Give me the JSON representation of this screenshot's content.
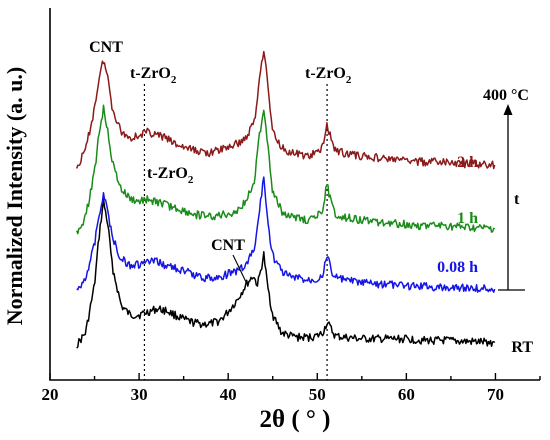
{
  "chart_data": {
    "type": "line",
    "xlabel": "2θ ( ° )",
    "ylabel": "Normalized Intensity (a. u.)",
    "xlim": [
      20,
      75
    ],
    "xticks": [
      20,
      30,
      40,
      50,
      60,
      70
    ],
    "x_tick_labels": [
      "20",
      "30",
      "40",
      "50",
      "60",
      "70"
    ],
    "y_ticks_shown": false,
    "grid": false,
    "reference_lines": [
      30.6,
      51.1
    ],
    "series": [
      {
        "name": "RT",
        "color": "#000000",
        "x": [
          23,
          24,
          25,
          25.5,
          26,
          26.5,
          27,
          28,
          29,
          30,
          31,
          32,
          33,
          34,
          35,
          36,
          37,
          38,
          39,
          40,
          41,
          42,
          42.8,
          43.3,
          43.6,
          44,
          44.4,
          45,
          46,
          47,
          48,
          49,
          50,
          50.6,
          51.1,
          51.6,
          52,
          53,
          55,
          58,
          60,
          62,
          64,
          66,
          68,
          70
        ],
        "y": [
          0.0,
          0.04,
          0.2,
          0.36,
          0.48,
          0.4,
          0.26,
          0.13,
          0.1,
          0.1,
          0.11,
          0.12,
          0.115,
          0.1,
          0.085,
          0.075,
          0.07,
          0.07,
          0.08,
          0.11,
          0.15,
          0.2,
          0.23,
          0.2,
          0.24,
          0.3,
          0.2,
          0.1,
          0.04,
          0.03,
          0.025,
          0.025,
          0.03,
          0.04,
          0.075,
          0.05,
          0.03,
          0.025,
          0.02,
          0.02,
          0.02,
          0.015,
          0.015,
          0.012,
          0.01,
          0.008
        ]
      },
      {
        "name": "0.08 h",
        "color": "#1515e6",
        "x": [
          23,
          24,
          25,
          25.5,
          26,
          26.5,
          27,
          28,
          29,
          30,
          31,
          32,
          33,
          34,
          35,
          36,
          37,
          38,
          39,
          40,
          41,
          42,
          43,
          43.5,
          44,
          44.5,
          45,
          46,
          47,
          48,
          49,
          50,
          50.6,
          51.1,
          51.6,
          52,
          53,
          55,
          58,
          60,
          62,
          64,
          66,
          68,
          70
        ],
        "y": [
          0.0,
          0.05,
          0.16,
          0.26,
          0.32,
          0.27,
          0.18,
          0.11,
          0.09,
          0.09,
          0.1,
          0.1,
          0.09,
          0.08,
          0.07,
          0.06,
          0.05,
          0.045,
          0.05,
          0.06,
          0.07,
          0.09,
          0.15,
          0.27,
          0.38,
          0.22,
          0.12,
          0.07,
          0.05,
          0.045,
          0.04,
          0.045,
          0.06,
          0.12,
          0.07,
          0.05,
          0.04,
          0.03,
          0.025,
          0.02,
          0.02,
          0.015,
          0.015,
          0.012,
          0.01
        ]
      },
      {
        "name": "1 h",
        "color": "#1a8c1a",
        "x": [
          23,
          24,
          25,
          25.5,
          26,
          26.5,
          27,
          28,
          29,
          30,
          31,
          32,
          33,
          34,
          35,
          36,
          37,
          38,
          39,
          40,
          41,
          42,
          43,
          43.5,
          44,
          44.5,
          45,
          46,
          47,
          48,
          49,
          50,
          50.6,
          51.1,
          51.6,
          52,
          53,
          55,
          58,
          60,
          62,
          64,
          66,
          68,
          70
        ],
        "y": [
          0.0,
          0.05,
          0.2,
          0.33,
          0.41,
          0.34,
          0.23,
          0.14,
          0.11,
          0.1,
          0.11,
          0.1,
          0.09,
          0.08,
          0.07,
          0.06,
          0.055,
          0.05,
          0.055,
          0.06,
          0.07,
          0.1,
          0.18,
          0.32,
          0.41,
          0.28,
          0.13,
          0.07,
          0.05,
          0.045,
          0.04,
          0.05,
          0.08,
          0.16,
          0.09,
          0.06,
          0.05,
          0.04,
          0.03,
          0.025,
          0.02,
          0.02,
          0.015,
          0.012,
          0.01
        ]
      },
      {
        "name": "2 h",
        "color": "#8b1a1a",
        "x": [
          23,
          24,
          25,
          25.5,
          26,
          26.5,
          27,
          28,
          29,
          30,
          31,
          32,
          33,
          34,
          35,
          36,
          37,
          38,
          39,
          40,
          41,
          42,
          43,
          43.5,
          44,
          44.5,
          45,
          46,
          47,
          48,
          49,
          50,
          50.6,
          51.1,
          51.6,
          52,
          53,
          55,
          58,
          60,
          62,
          64,
          66,
          68,
          70
        ],
        "y": [
          0.0,
          0.06,
          0.2,
          0.3,
          0.36,
          0.3,
          0.2,
          0.12,
          0.1,
          0.11,
          0.12,
          0.11,
          0.1,
          0.08,
          0.07,
          0.06,
          0.055,
          0.05,
          0.06,
          0.07,
          0.08,
          0.1,
          0.16,
          0.3,
          0.4,
          0.26,
          0.12,
          0.07,
          0.05,
          0.045,
          0.04,
          0.05,
          0.07,
          0.15,
          0.09,
          0.06,
          0.05,
          0.04,
          0.03,
          0.025,
          0.02,
          0.02,
          0.015,
          0.012,
          0.01
        ]
      }
    ],
    "series_labels": [
      "RT",
      "0.08 h",
      "1 h",
      "2 h"
    ],
    "annotations": {
      "cnt_top": "CNT",
      "tzro2_left": "t-ZrO",
      "tzro2_right": "t-ZrO",
      "tzro2_mid": "t-ZrO",
      "cnt_small": "CNT",
      "subscript": "2",
      "temperature": "400 °C",
      "time_axis": "t"
    }
  }
}
